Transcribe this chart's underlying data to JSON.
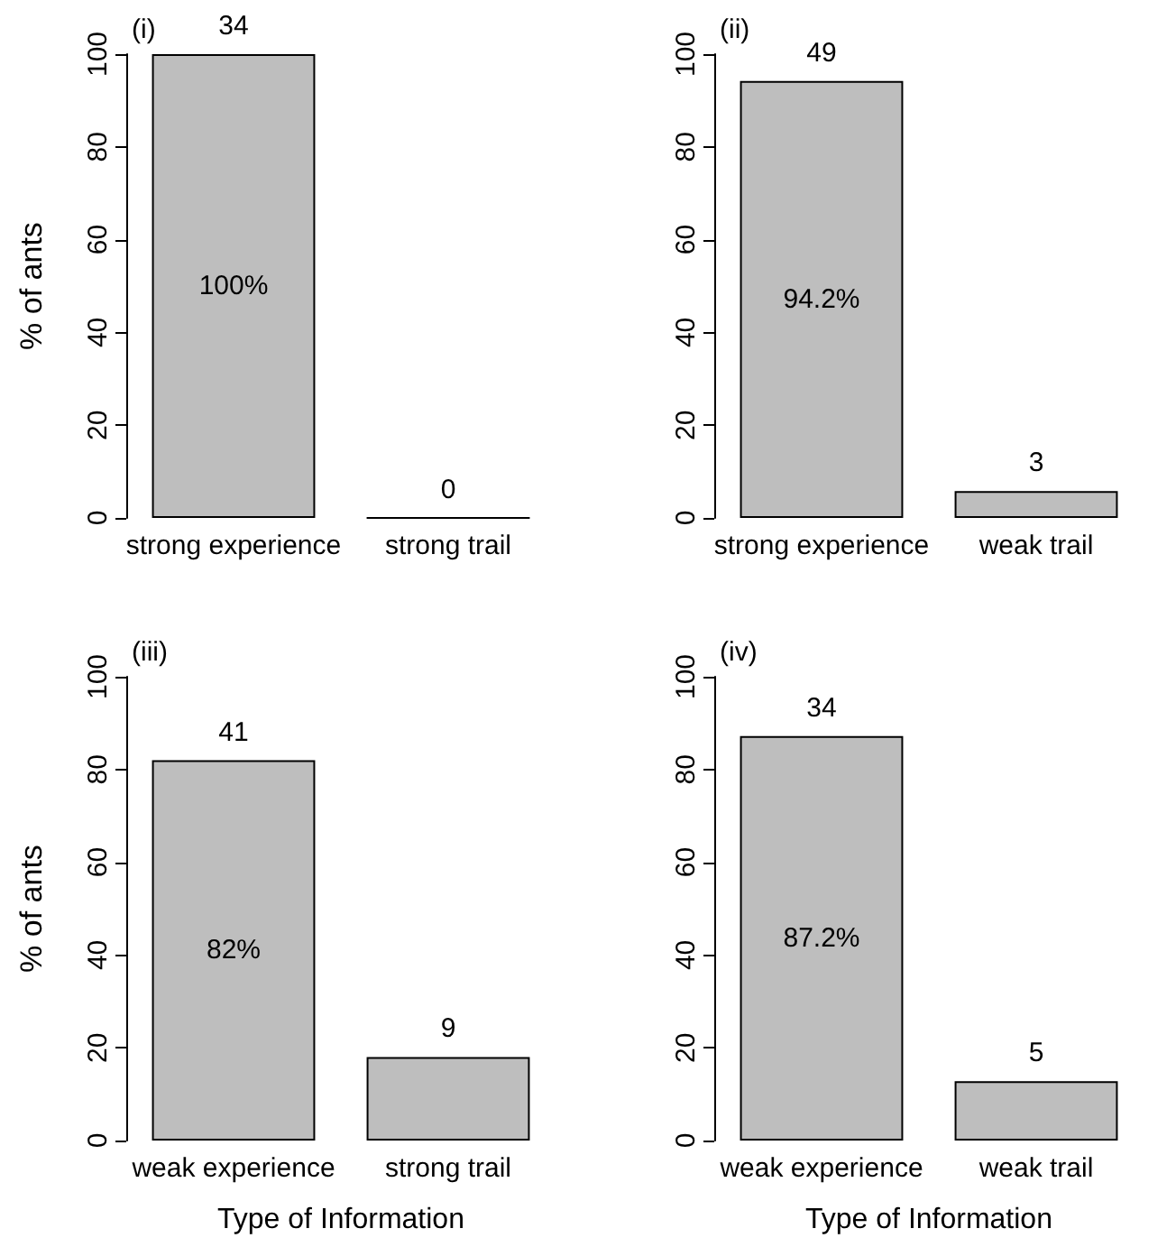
{
  "chart_data": [
    {
      "type": "bar",
      "title": "(i)",
      "ylabel": "% of ants",
      "categories": [
        "strong experience",
        "strong trail"
      ],
      "values": [
        100,
        0
      ],
      "color": "#bebebe",
      "ylim": [
        0,
        100
      ],
      "yticks": [
        0,
        20,
        40,
        60,
        80,
        100
      ],
      "grid": false,
      "annotations": [
        "100%",
        {
          "text": "34",
          "x": "strong experience",
          "y": 100
        },
        {
          "text": "0",
          "x": "strong trail",
          "y": 0
        }
      ]
    },
    {
      "type": "bar",
      "title": "(ii)",
      "categories": [
        "strong experience",
        "weak trail"
      ],
      "values": [
        94.2,
        5.8
      ],
      "color": "#bebebe",
      "ylim": [
        0,
        100
      ],
      "yticks": [
        0,
        20,
        40,
        60,
        80,
        100
      ],
      "grid": false,
      "annotations": [
        "94.2%",
        {
          "text": "49",
          "x": "strong experience",
          "y": 94.2
        },
        {
          "text": "3",
          "x": "weak trail",
          "y": 5.8
        }
      ]
    },
    {
      "type": "bar",
      "title": "(iii)",
      "ylabel": "% of ants",
      "xlabel": "Type of Information",
      "categories": [
        "weak experience",
        "strong trail"
      ],
      "values": [
        82,
        18
      ],
      "color": "#bebebe",
      "ylim": [
        0,
        100
      ],
      "yticks": [
        0,
        20,
        40,
        60,
        80,
        100
      ],
      "grid": false,
      "annotations": [
        "82%",
        {
          "text": "41",
          "x": "weak experience",
          "y": 82
        },
        {
          "text": "9",
          "x": "strong trail",
          "y": 18
        }
      ]
    },
    {
      "type": "bar",
      "title": "(iv)",
      "xlabel": "Type of Information",
      "categories": [
        "weak experience",
        "weak trail"
      ],
      "values": [
        87.2,
        12.8
      ],
      "color": "#bebebe",
      "ylim": [
        0,
        100
      ],
      "yticks": [
        0,
        20,
        40,
        60,
        80,
        100
      ],
      "grid": false,
      "annotations": [
        "87.2%",
        {
          "text": "34",
          "x": "weak experience",
          "y": 87.2
        },
        {
          "text": "5",
          "x": "weak trail",
          "y": 12.8
        }
      ]
    }
  ]
}
